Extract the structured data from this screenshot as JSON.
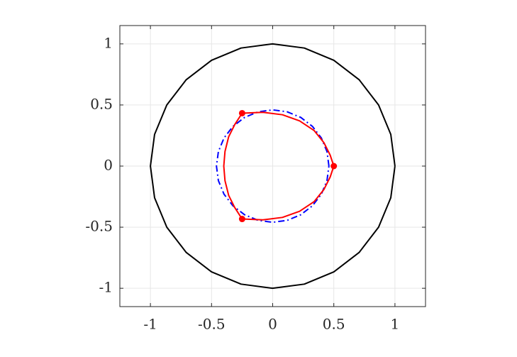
{
  "chart_data": {
    "type": "line",
    "xlim": [
      -1.25,
      1.25
    ],
    "ylim": [
      -1.15,
      1.15
    ],
    "xticks": [
      -1,
      -0.5,
      0,
      0.5,
      1
    ],
    "yticks": [
      -1,
      -0.5,
      0,
      0.5,
      1
    ],
    "grid": true,
    "series": [
      {
        "color": "#000000",
        "style": "solid",
        "x": [
          1,
          0.966,
          0.866,
          0.707,
          0.5,
          0.259,
          0,
          -0.259,
          -0.5,
          -0.707,
          -0.866,
          -0.966,
          -1,
          -0.966,
          -0.866,
          -0.707,
          -0.5,
          -0.259,
          0,
          0.259,
          0.5,
          0.707,
          0.866,
          0.966,
          1
        ],
        "values": [
          0,
          0.259,
          0.5,
          0.707,
          0.866,
          0.966,
          1,
          0.966,
          0.866,
          0.707,
          0.5,
          0.259,
          0,
          -0.259,
          -0.5,
          -0.707,
          -0.866,
          -0.966,
          -1,
          -0.966,
          -0.866,
          -0.707,
          -0.5,
          -0.259,
          0
        ]
      },
      {
        "color": "#0000ff",
        "style": "dashdot",
        "x": [
          0.46,
          0.444,
          0.398,
          0.325,
          0.23,
          0.119,
          0,
          -0.119,
          -0.23,
          -0.325,
          -0.398,
          -0.444,
          -0.46,
          -0.444,
          -0.398,
          -0.325,
          -0.23,
          -0.119,
          0,
          0.119,
          0.23,
          0.325,
          0.398,
          0.444,
          0.46
        ],
        "values": [
          0,
          0.119,
          0.23,
          0.325,
          0.398,
          0.444,
          0.46,
          0.444,
          0.398,
          0.325,
          0.23,
          0.119,
          0,
          -0.119,
          -0.23,
          -0.325,
          -0.398,
          -0.444,
          -0.46,
          -0.444,
          -0.398,
          -0.325,
          -0.23,
          -0.119,
          0
        ]
      },
      {
        "color": "#ff0000",
        "style": "solid",
        "x": [
          0.5,
          0.47,
          0.42,
          0.34,
          0.22,
          0.08,
          -0.08,
          -0.25,
          -0.31,
          -0.36,
          -0.39,
          -0.4,
          -0.39,
          -0.36,
          -0.31,
          -0.25,
          -0.08,
          0.08,
          0.22,
          0.34,
          0.42,
          0.47,
          0.5
        ],
        "values": [
          0,
          0.09,
          0.19,
          0.29,
          0.37,
          0.42,
          0.44,
          0.433,
          0.34,
          0.24,
          0.12,
          0,
          -0.12,
          -0.24,
          -0.34,
          -0.433,
          -0.44,
          -0.42,
          -0.37,
          -0.29,
          -0.19,
          -0.09,
          0
        ]
      },
      {
        "color": "#ff0000",
        "style": "markers",
        "x": [
          0.5,
          -0.25,
          -0.25
        ],
        "values": [
          0,
          0.433,
          -0.433
        ]
      }
    ]
  }
}
